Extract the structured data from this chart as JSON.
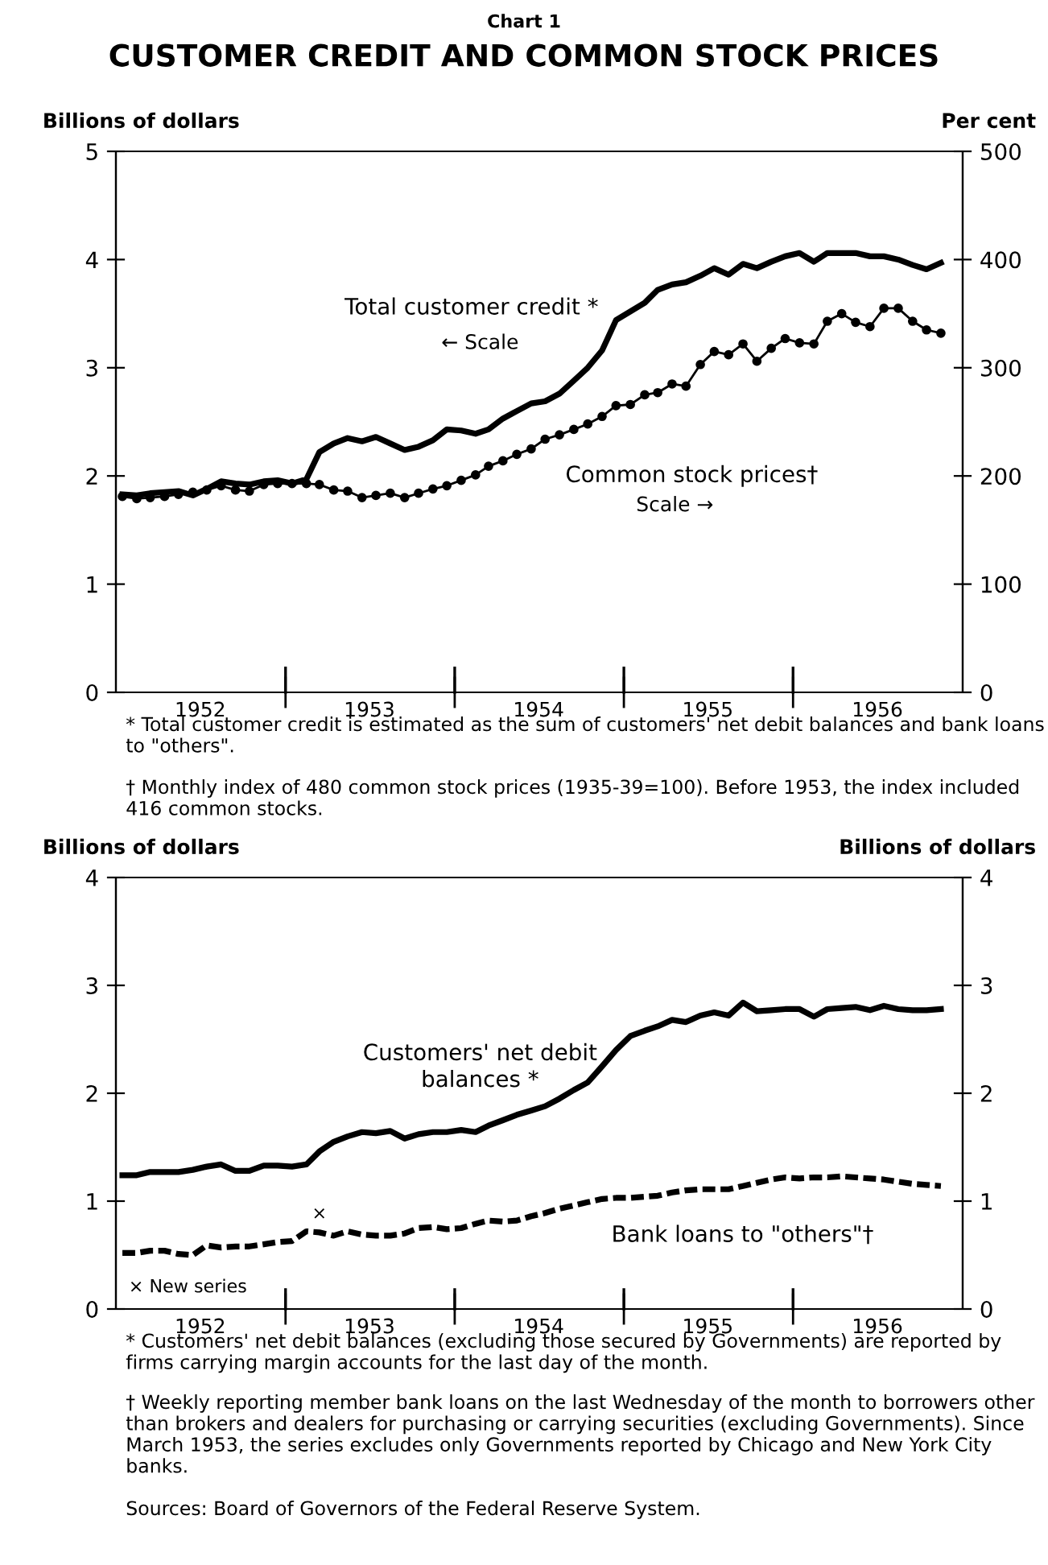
{
  "chart_data": [
    {
      "type": "line",
      "subtitle": "Chart 1",
      "title": "CUSTOMER CREDIT AND COMMON STOCK PRICES",
      "ylabel": "Billions of dollars",
      "y2label": "Per cent",
      "x": [
        "1952-01-15",
        "1952-02-15",
        "1952-03-15",
        "1952-04-15",
        "1952-05-15",
        "1952-06-15",
        "1952-07-15",
        "1952-08-15",
        "1952-09-15",
        "1952-10-15",
        "1952-11-15",
        "1952-12-15",
        "1953-01-15",
        "1953-02-15",
        "1953-03-15",
        "1953-04-15",
        "1953-05-15",
        "1953-06-15",
        "1953-07-15",
        "1953-08-15",
        "1953-09-15",
        "1953-10-15",
        "1953-11-15",
        "1953-12-15",
        "1954-01-15",
        "1954-02-15",
        "1954-03-15",
        "1954-04-15",
        "1954-05-15",
        "1954-06-15",
        "1954-07-15",
        "1954-08-15",
        "1954-09-15",
        "1954-10-15",
        "1954-11-15",
        "1954-12-15",
        "1955-01-15",
        "1955-02-15",
        "1955-03-15",
        "1955-04-15",
        "1955-05-15",
        "1955-06-15",
        "1955-07-15",
        "1955-08-15",
        "1955-09-15",
        "1955-10-15",
        "1955-11-15",
        "1955-12-15",
        "1956-01-15",
        "1956-02-15",
        "1956-03-15",
        "1956-04-15",
        "1956-05-15",
        "1956-06-15",
        "1956-07-15",
        "1956-08-15",
        "1956-09-15",
        "1956-10-15",
        "1956-11-15"
      ],
      "series": [
        {
          "name": "Total customer credit *",
          "color": "#000000",
          "line_style": "solid",
          "values": [
            1.83,
            1.82,
            1.84,
            1.85,
            1.86,
            1.82,
            1.88,
            1.95,
            1.93,
            1.92,
            1.95,
            1.96,
            1.93,
            1.97,
            2.22,
            2.3,
            2.35,
            2.32,
            2.36,
            2.3,
            2.24,
            2.27,
            2.33,
            2.43,
            2.42,
            2.39,
            2.43,
            2.53,
            2.6,
            2.67,
            2.69,
            2.76,
            2.88,
            3.0,
            3.16,
            3.44,
            3.52,
            3.6,
            3.72,
            3.77,
            3.79,
            3.85,
            3.92,
            3.86,
            3.96,
            3.92,
            3.98,
            4.03,
            4.06,
            3.98,
            4.06,
            4.06,
            4.06,
            4.03,
            4.03,
            4.0,
            3.95,
            3.91,
            3.97
          ]
        },
        {
          "name": "Common stock prices†",
          "color": "#000000",
          "axis": "y2",
          "marker": "circle",
          "line_style": "solid",
          "values": [
            181,
            179,
            180,
            181,
            183,
            185,
            187,
            191,
            187,
            186,
            192,
            193,
            193,
            193,
            192,
            187,
            186,
            180,
            182,
            184,
            180,
            184,
            188,
            191,
            196,
            201,
            209,
            214,
            220,
            225,
            234,
            238,
            243,
            248,
            255,
            265,
            266,
            275,
            277,
            285,
            283,
            303,
            315,
            312,
            322,
            306,
            318,
            327,
            323,
            322,
            343,
            350,
            342,
            338,
            355,
            355,
            343,
            335,
            332
          ]
        }
      ],
      "ylim": [
        0,
        5
      ],
      "yticks": [
        0,
        1,
        2,
        3,
        4,
        5
      ],
      "y2lim": [
        0,
        500
      ],
      "y2ticks": [
        0,
        100,
        200,
        300,
        400,
        500
      ],
      "xlim": [
        "1952-01-01",
        "1957-01-01"
      ],
      "xticks": [
        {
          "value": "1952-07-01",
          "label": "1952"
        },
        {
          "value": "1953-01-01",
          "label": null
        },
        {
          "value": "1953-07-01",
          "label": "1953"
        },
        {
          "value": "1954-01-01",
          "label": null
        },
        {
          "value": "1954-07-01",
          "label": "1954"
        },
        {
          "value": "1955-01-01",
          "label": null
        },
        {
          "value": "1955-07-01",
          "label": "1955"
        },
        {
          "value": "1956-01-01",
          "label": null
        },
        {
          "value": "1956-07-01",
          "label": "1956"
        }
      ],
      "grid": false,
      "annotations": [
        "← Scale",
        "Scale →",
        "* Total customer credit is estimated as the sum of customers' net debit balances and bank loans to \"others\".",
        "† Monthly index of 480 common stock prices (1935-39=100). Before 1953, the index included 416 common stocks."
      ]
    },
    {
      "type": "line",
      "ylabel": "Billions of dollars",
      "y2label": "Billions of dollars",
      "x": [
        "1952-01-15",
        "1952-02-15",
        "1952-03-15",
        "1952-04-15",
        "1952-05-15",
        "1952-06-15",
        "1952-07-15",
        "1952-08-15",
        "1952-09-15",
        "1952-10-15",
        "1952-11-15",
        "1952-12-15",
        "1953-01-15",
        "1953-02-15",
        "1953-03-15",
        "1953-04-15",
        "1953-05-15",
        "1953-06-15",
        "1953-07-15",
        "1953-08-15",
        "1953-09-15",
        "1953-10-15",
        "1953-11-15",
        "1953-12-15",
        "1954-01-15",
        "1954-02-15",
        "1954-03-15",
        "1954-04-15",
        "1954-05-15",
        "1954-06-15",
        "1954-07-15",
        "1954-08-15",
        "1954-09-15",
        "1954-10-15",
        "1954-11-15",
        "1954-12-15",
        "1955-01-15",
        "1955-02-15",
        "1955-03-15",
        "1955-04-15",
        "1955-05-15",
        "1955-06-15",
        "1955-07-15",
        "1955-08-15",
        "1955-09-15",
        "1955-10-15",
        "1955-11-15",
        "1955-12-15",
        "1956-01-15",
        "1956-02-15",
        "1956-03-15",
        "1956-04-15",
        "1956-05-15",
        "1956-06-15",
        "1956-07-15",
        "1956-08-15",
        "1956-09-15",
        "1956-10-15",
        "1956-11-15"
      ],
      "series": [
        {
          "name": "Customers' net debit\nbalances *",
          "color": "#000000",
          "line_style": "solid",
          "values": [
            1.24,
            1.24,
            1.27,
            1.27,
            1.27,
            1.29,
            1.32,
            1.34,
            1.28,
            1.28,
            1.33,
            1.33,
            1.32,
            1.34,
            1.46,
            1.55,
            1.6,
            1.64,
            1.63,
            1.65,
            1.58,
            1.62,
            1.64,
            1.64,
            1.66,
            1.64,
            1.7,
            1.75,
            1.8,
            1.84,
            1.88,
            1.95,
            2.03,
            2.1,
            2.25,
            2.4,
            2.53,
            2.58,
            2.62,
            2.68,
            2.66,
            2.72,
            2.75,
            2.72,
            2.84,
            2.76,
            2.77,
            2.78,
            2.78,
            2.71,
            2.78,
            2.79,
            2.8,
            2.77,
            2.81,
            2.78,
            2.77,
            2.77,
            2.78
          ]
        },
        {
          "name": "Bank loans to \"others\"†",
          "color": "#000000",
          "line_style": "dashed",
          "values": [
            0.52,
            0.52,
            0.54,
            0.54,
            0.51,
            0.5,
            0.59,
            0.57,
            0.58,
            0.58,
            0.6,
            0.62,
            0.63,
            0.72,
            0.71,
            0.68,
            0.72,
            0.69,
            0.68,
            0.68,
            0.7,
            0.75,
            0.76,
            0.74,
            0.75,
            0.79,
            0.82,
            0.81,
            0.82,
            0.86,
            0.89,
            0.93,
            0.96,
            0.99,
            1.02,
            1.03,
            1.03,
            1.04,
            1.05,
            1.08,
            1.1,
            1.11,
            1.11,
            1.11,
            1.14,
            1.17,
            1.2,
            1.22,
            1.21,
            1.22,
            1.22,
            1.23,
            1.22,
            1.21,
            1.2,
            1.18,
            1.16,
            1.15,
            1.14
          ]
        }
      ],
      "ylim": [
        0,
        4
      ],
      "yticks": [
        0,
        1,
        2,
        3,
        4
      ],
      "y2lim": [
        0,
        4
      ],
      "y2ticks": [
        0,
        1,
        2,
        3,
        4
      ],
      "xlim": [
        "1952-01-01",
        "1957-01-01"
      ],
      "xticks": [
        {
          "value": "1952-07-01",
          "label": "1952"
        },
        {
          "value": "1953-01-01",
          "label": null
        },
        {
          "value": "1953-07-01",
          "label": "1953"
        },
        {
          "value": "1954-01-01",
          "label": null
        },
        {
          "value": "1954-07-01",
          "label": "1954"
        },
        {
          "value": "1955-01-01",
          "label": null
        },
        {
          "value": "1955-07-01",
          "label": "1955"
        },
        {
          "value": "1956-01-01",
          "label": null
        },
        {
          "value": "1956-07-01",
          "label": "1956"
        }
      ],
      "grid": false,
      "annotations": [
        {
          "text": "×",
          "x": "1953-03-15",
          "y": 0.8
        },
        "× New series",
        "* Customers' net debit balances (excluding those secured by Governments) are reported by firms carrying margin accounts for the last day of the month.",
        "† Weekly reporting member bank loans on the last Wednesday of the month to borrowers other than brokers and dealers for purchasing or carrying securities (excluding Governments). Since March 1953, the series excludes only Governments reported by Chicago and New York City banks.",
        "Sources: Board of Governors of the Federal Reserve System."
      ]
    }
  ]
}
